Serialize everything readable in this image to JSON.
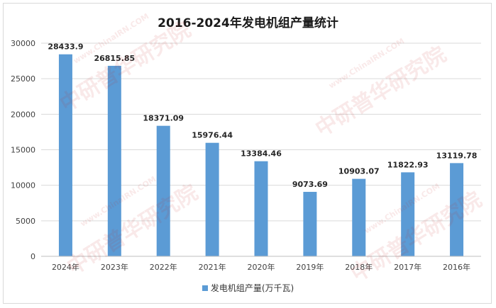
{
  "chart_data": {
    "type": "bar",
    "title": "2016-2024年发电机组产量统计",
    "categories": [
      "2024年",
      "2023年",
      "2022年",
      "2021年",
      "2020年",
      "2019年",
      "2018年",
      "2017年",
      "2016年"
    ],
    "series": [
      {
        "name": "发电机组产量(万千瓦)",
        "values": [
          28433.9,
          26815.85,
          18371.09,
          15976.44,
          13384.46,
          9073.69,
          10903.07,
          11822.93,
          13119.78
        ],
        "labels": [
          "28433.9",
          "26815.85",
          "18371.09",
          "15976.44",
          "13384.46",
          "9073.69",
          "10903.07",
          "11822.93",
          "13119.78"
        ]
      }
    ],
    "ylim": [
      0,
      30000
    ],
    "yticks": [
      "0",
      "5000",
      "10000",
      "15000",
      "20000",
      "25000",
      "30000"
    ],
    "grid": true,
    "legend_position": "bottom",
    "bar_color": "#5b9bd5"
  },
  "watermark": {
    "text": "中研普华研究院",
    "url": "www.ChinaIRN.COM",
    "logo": "CIRN"
  }
}
